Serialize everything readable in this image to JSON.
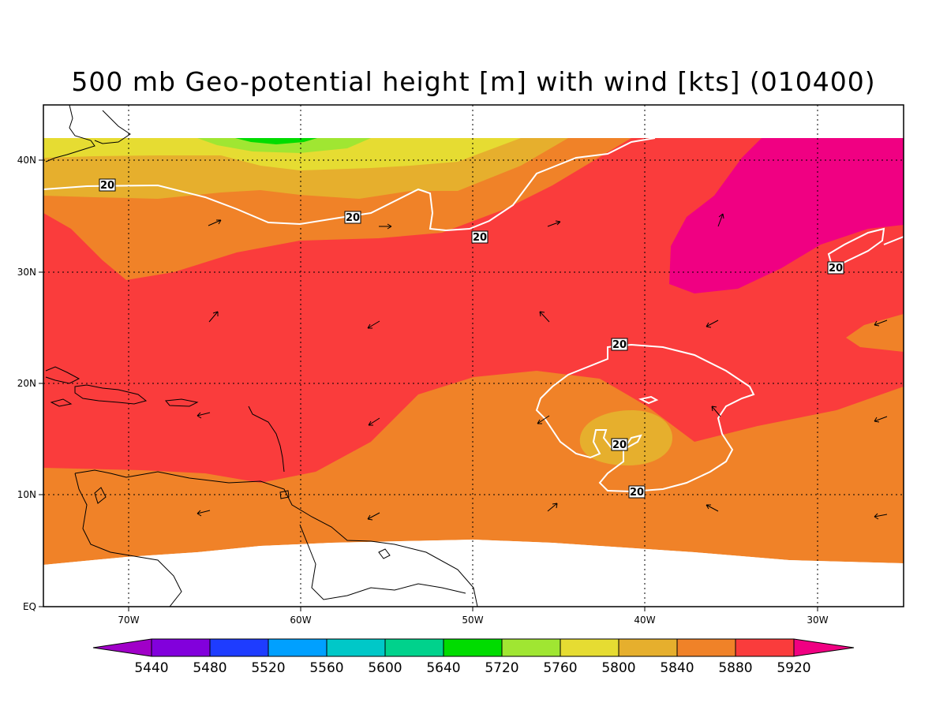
{
  "title": "500 mb Geo-potential height [m] with wind [kts] (010400)",
  "colors": {
    "c5440": "#a000c8",
    "c5480": "#8200dc",
    "c5520": "#1e3cff",
    "c5560": "#00a0ff",
    "c5600": "#00c8c8",
    "c5640": "#00d28c",
    "c5720": "#00dc00",
    "c5760": "#a0e632",
    "c5800": "#e6dc32",
    "c5840": "#e6af2d",
    "c5880": "#f08228",
    "c5920": "#fa3c3c",
    "c5960": "#f00082"
  },
  "axes": {
    "x_ticks": [
      "70W",
      "60W",
      "50W",
      "40W",
      "30W"
    ],
    "y_ticks": [
      "EQ",
      "10N",
      "20N",
      "30N",
      "40N"
    ]
  },
  "colorbar": {
    "labels": [
      "5440",
      "5480",
      "5520",
      "5560",
      "5600",
      "5640",
      "5720",
      "5760",
      "5800",
      "5840",
      "5880",
      "5920"
    ]
  },
  "contour_labels": [
    "20",
    "20",
    "20",
    "20",
    "20",
    "20",
    "20"
  ]
}
